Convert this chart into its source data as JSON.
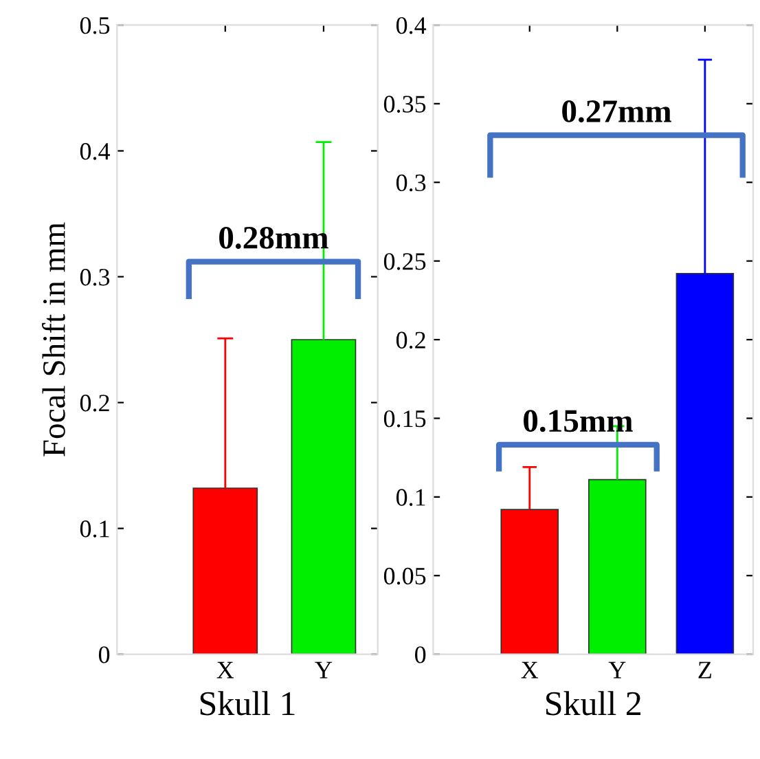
{
  "chart_data": [
    {
      "type": "bar",
      "categories": [
        "X",
        "Y"
      ],
      "xlabel": "Skull 1",
      "ylabel": "Focal Shift in mm",
      "values": [
        0.132,
        0.25
      ],
      "colors": [
        "#ff0000",
        "#00ee00"
      ],
      "errors": [
        [
          0.132,
          0.251
        ],
        [
          0.25,
          0.407
        ]
      ],
      "ylim": [
        0,
        0.5
      ],
      "yticks": [
        0,
        0.1,
        0.2,
        0.3,
        0.4,
        0.5
      ],
      "grid": false,
      "annotations": [
        "0.28mm"
      ]
    },
    {
      "type": "bar",
      "categories": [
        "X",
        "Y",
        "Z"
      ],
      "xlabel": "Skull 2",
      "values": [
        0.092,
        0.111,
        0.242
      ],
      "colors": [
        "#ff0000",
        "#00ee00",
        "#0000ff"
      ],
      "errors": [
        [
          0.092,
          0.119
        ],
        [
          0.111,
          0.145
        ],
        [
          0.242,
          0.378
        ]
      ],
      "ylim": [
        0,
        0.4
      ],
      "yticks": [
        0,
        0.05,
        0.1,
        0.15,
        0.2,
        0.25,
        0.3,
        0.35,
        0.4
      ],
      "grid": false,
      "annotations": [
        "0.15mm",
        "0.27mm"
      ]
    }
  ]
}
